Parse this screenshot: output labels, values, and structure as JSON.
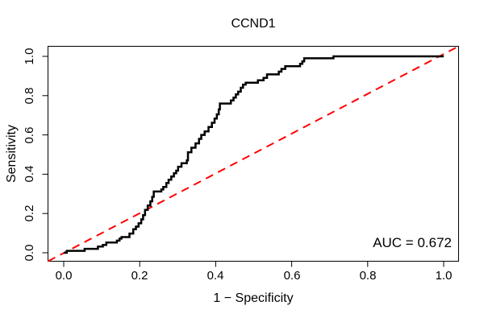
{
  "chart_data": {
    "type": "line",
    "subtype": "roc-curve",
    "title": "CCND1",
    "xlabel": "1 − Specificity",
    "ylabel": "Sensitivity",
    "xlim": [
      0,
      1
    ],
    "ylim": [
      0,
      1
    ],
    "x_ticks": [
      "0.0",
      "0.2",
      "0.4",
      "0.6",
      "0.8",
      "1.0"
    ],
    "y_ticks": [
      "0.0",
      "0.2",
      "0.4",
      "0.6",
      "0.8",
      "1.0"
    ],
    "grid": false,
    "legend": "none",
    "auc": 0.672,
    "annotation": {
      "text": "AUC = 0.672",
      "position": "bottom-right"
    },
    "series": [
      {
        "name": "ROC curve",
        "draw": "step",
        "color": "#000000",
        "line_width": 2.5,
        "points": [
          [
            0.0,
            0.0
          ],
          [
            0.008,
            0.01
          ],
          [
            0.055,
            0.02
          ],
          [
            0.09,
            0.032
          ],
          [
            0.103,
            0.04
          ],
          [
            0.112,
            0.052
          ],
          [
            0.14,
            0.062
          ],
          [
            0.147,
            0.072
          ],
          [
            0.152,
            0.08
          ],
          [
            0.173,
            0.098
          ],
          [
            0.183,
            0.12
          ],
          [
            0.19,
            0.133
          ],
          [
            0.197,
            0.15
          ],
          [
            0.204,
            0.17
          ],
          [
            0.209,
            0.192
          ],
          [
            0.214,
            0.218
          ],
          [
            0.221,
            0.24
          ],
          [
            0.228,
            0.262
          ],
          [
            0.233,
            0.285
          ],
          [
            0.237,
            0.312
          ],
          [
            0.257,
            0.322
          ],
          [
            0.262,
            0.335
          ],
          [
            0.27,
            0.355
          ],
          [
            0.276,
            0.372
          ],
          [
            0.283,
            0.388
          ],
          [
            0.29,
            0.405
          ],
          [
            0.296,
            0.418
          ],
          [
            0.301,
            0.438
          ],
          [
            0.31,
            0.456
          ],
          [
            0.324,
            0.47
          ],
          [
            0.327,
            0.512
          ],
          [
            0.336,
            0.535
          ],
          [
            0.347,
            0.557
          ],
          [
            0.356,
            0.58
          ],
          [
            0.362,
            0.6
          ],
          [
            0.371,
            0.618
          ],
          [
            0.381,
            0.64
          ],
          [
            0.39,
            0.662
          ],
          [
            0.397,
            0.683
          ],
          [
            0.403,
            0.705
          ],
          [
            0.408,
            0.73
          ],
          [
            0.411,
            0.76
          ],
          [
            0.44,
            0.776
          ],
          [
            0.447,
            0.79
          ],
          [
            0.453,
            0.806
          ],
          [
            0.459,
            0.82
          ],
          [
            0.466,
            0.84
          ],
          [
            0.472,
            0.856
          ],
          [
            0.479,
            0.866
          ],
          [
            0.511,
            0.878
          ],
          [
            0.526,
            0.89
          ],
          [
            0.535,
            0.908
          ],
          [
            0.566,
            0.922
          ],
          [
            0.573,
            0.936
          ],
          [
            0.583,
            0.95
          ],
          [
            0.622,
            0.962
          ],
          [
            0.628,
            0.974
          ],
          [
            0.633,
            0.99
          ],
          [
            0.71,
            1.0
          ],
          [
            1.0,
            1.0
          ]
        ]
      },
      {
        "name": "chance diagonal",
        "draw": "straight",
        "color": "#FF0000",
        "dash": "dashed",
        "line_width": 2,
        "points": [
          [
            0,
            0
          ],
          [
            1,
            1
          ]
        ]
      }
    ]
  },
  "colors": {
    "background": "#FFFFFF",
    "axis": "#000000",
    "text": "#000000",
    "curve": "#000000",
    "diagonal": "#FF0000"
  }
}
